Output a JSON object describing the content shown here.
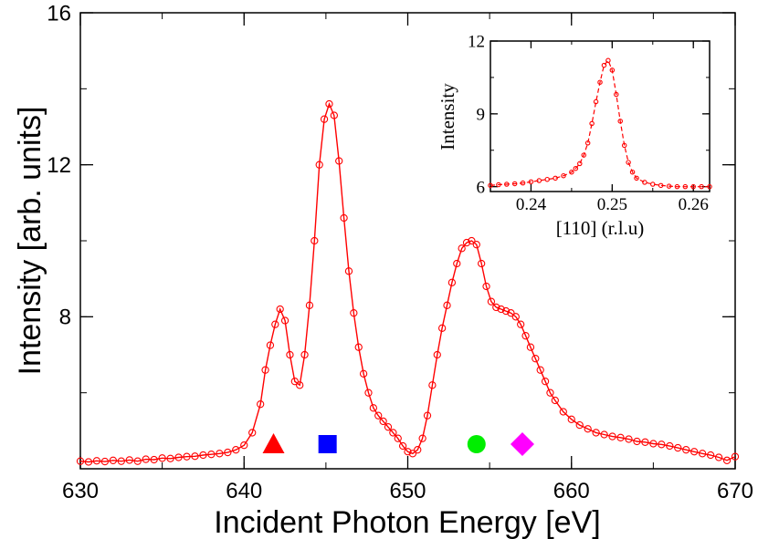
{
  "chart_data": [
    {
      "type": "line",
      "title": "",
      "xlabel": "Incident Photon Energy [eV]",
      "ylabel": "Intensity [arb. units]",
      "xlim": [
        630,
        670
      ],
      "ylim": [
        4,
        16
      ],
      "xticks": [
        630,
        640,
        650,
        660,
        670
      ],
      "xtick_labels": [
        "630",
        "640",
        "650",
        "660",
        "670"
      ],
      "yticks": [
        8,
        12,
        16
      ],
      "ytick_labels": [
        "8",
        "12",
        "16"
      ],
      "series": [
        {
          "name": "intensity",
          "color": "#ff0000",
          "marker": "open-circle",
          "x": [
            630,
            630.5,
            631,
            631.5,
            632,
            632.5,
            633,
            633.5,
            634,
            634.5,
            635,
            635.5,
            636,
            636.5,
            637,
            637.5,
            638,
            638.5,
            639,
            639.5,
            640,
            640.5,
            641,
            641.3,
            641.6,
            641.9,
            642.2,
            642.5,
            642.8,
            643.1,
            643.4,
            643.7,
            644,
            644.3,
            644.6,
            644.9,
            645.2,
            645.5,
            645.8,
            646.1,
            646.4,
            646.7,
            647,
            647.3,
            647.6,
            647.9,
            648.2,
            648.5,
            648.8,
            649.1,
            649.4,
            649.7,
            650,
            650.3,
            650.6,
            650.9,
            651.2,
            651.5,
            651.8,
            652.1,
            652.4,
            652.7,
            653,
            653.3,
            653.6,
            653.9,
            654.2,
            654.5,
            654.8,
            655.1,
            655.4,
            655.7,
            656,
            656.3,
            656.6,
            656.9,
            657.2,
            657.5,
            657.8,
            658.1,
            658.4,
            658.7,
            659,
            659.5,
            660,
            660.5,
            661,
            661.5,
            662,
            662.5,
            663,
            663.5,
            664,
            664.5,
            665,
            665.5,
            666,
            666.5,
            667,
            667.5,
            668,
            668.5,
            669,
            669.5,
            670
          ],
          "y": [
            4.2,
            4.18,
            4.21,
            4.19,
            4.22,
            4.2,
            4.23,
            4.2,
            4.25,
            4.24,
            4.28,
            4.27,
            4.3,
            4.32,
            4.33,
            4.36,
            4.38,
            4.4,
            4.43,
            4.5,
            4.62,
            4.95,
            5.7,
            6.6,
            7.25,
            7.8,
            8.2,
            7.9,
            7.0,
            6.3,
            6.2,
            7.0,
            8.3,
            10.0,
            12.0,
            13.2,
            13.6,
            13.3,
            12.1,
            10.6,
            9.2,
            8.1,
            7.2,
            6.5,
            6.0,
            5.6,
            5.4,
            5.25,
            5.1,
            4.95,
            4.8,
            4.6,
            4.45,
            4.4,
            4.5,
            4.8,
            5.4,
            6.2,
            7.0,
            7.7,
            8.3,
            8.9,
            9.4,
            9.8,
            9.95,
            10.0,
            9.9,
            9.4,
            8.8,
            8.4,
            8.25,
            8.2,
            8.15,
            8.1,
            8.0,
            7.8,
            7.5,
            7.2,
            6.9,
            6.6,
            6.3,
            6.0,
            5.8,
            5.5,
            5.3,
            5.15,
            5.05,
            4.95,
            4.9,
            4.85,
            4.82,
            4.78,
            4.72,
            4.7,
            4.66,
            4.64,
            4.6,
            4.55,
            4.5,
            4.45,
            4.4,
            4.36,
            4.3,
            4.22,
            4.32
          ]
        }
      ],
      "markers": [
        {
          "shape": "triangle",
          "color": "#ff0000",
          "x": 641.8
        },
        {
          "shape": "square",
          "color": "#0000ff",
          "x": 645.1
        },
        {
          "shape": "circle",
          "color": "#00ee00",
          "x": 654.2
        },
        {
          "shape": "diamond",
          "color": "#ff00ff",
          "x": 657.0
        }
      ]
    },
    {
      "type": "line",
      "title": "",
      "xlabel": "[110] (r.l.u)",
      "ylabel": "Intensity",
      "xlim": [
        0.235,
        0.262
      ],
      "ylim": [
        5.8,
        12
      ],
      "xticks": [
        0.24,
        0.25,
        0.26
      ],
      "xtick_labels": [
        "0.24",
        "0.25",
        "0.26"
      ],
      "yticks": [
        6,
        9,
        12
      ],
      "ytick_labels": [
        "6",
        "9",
        "12"
      ],
      "series": [
        {
          "name": "inset intensity",
          "color": "#ff0000",
          "marker": "open-circle",
          "line": "dashed",
          "x": [
            0.235,
            0.236,
            0.237,
            0.238,
            0.239,
            0.24,
            0.241,
            0.242,
            0.243,
            0.244,
            0.245,
            0.2455,
            0.246,
            0.2465,
            0.247,
            0.2475,
            0.248,
            0.2485,
            0.249,
            0.2495,
            0.25,
            0.2505,
            0.251,
            0.2515,
            0.252,
            0.2525,
            0.253,
            0.254,
            0.255,
            0.256,
            0.257,
            0.258,
            0.259,
            0.26,
            0.261,
            0.262
          ],
          "y": [
            6.05,
            6.08,
            6.1,
            6.12,
            6.15,
            6.2,
            6.25,
            6.3,
            6.35,
            6.45,
            6.6,
            6.75,
            6.95,
            7.3,
            7.8,
            8.6,
            9.5,
            10.3,
            11.0,
            11.2,
            10.8,
            9.8,
            8.7,
            7.7,
            7.0,
            6.6,
            6.35,
            6.18,
            6.1,
            6.05,
            6.02,
            6.0,
            6.0,
            6.0,
            6.0,
            6.0
          ]
        }
      ]
    }
  ]
}
